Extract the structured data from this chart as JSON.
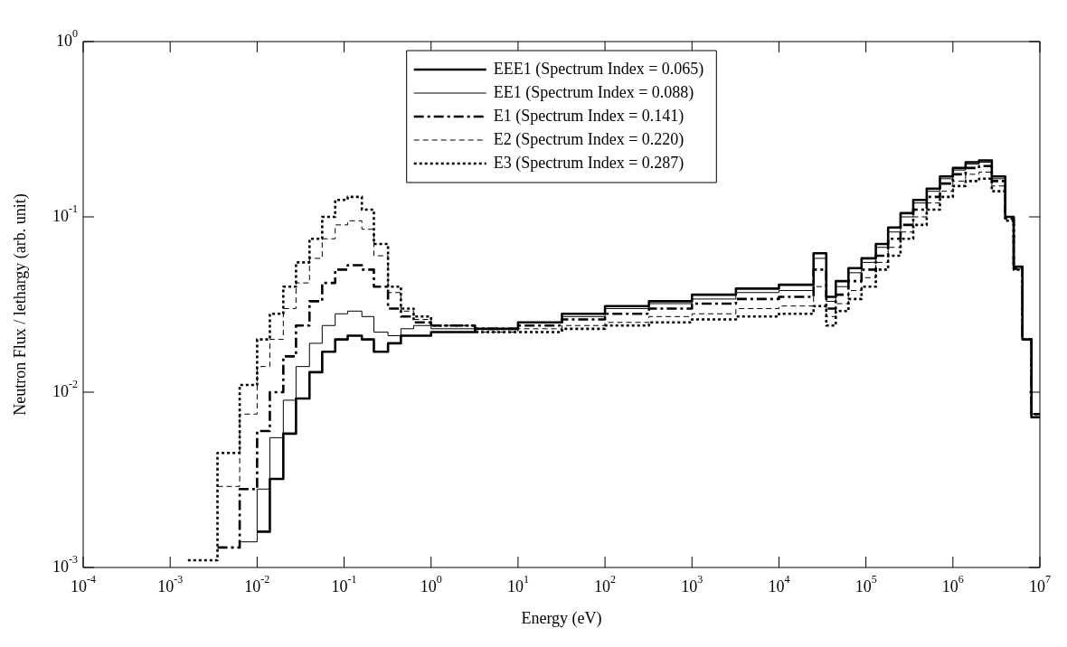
{
  "chart_data": {
    "type": "step",
    "xlabel": "Energy (eV)",
    "ylabel": "Neutron Flux / lethargy (arb. unit)",
    "log": "xy",
    "grid": false,
    "legend": "top",
    "xlim": [
      0.0001,
      10000000
    ],
    "ylim": [
      0.001,
      1
    ],
    "xticks": [
      {
        "value": 0.0001,
        "label": "10$^{-4}$"
      },
      {
        "value": 0.001,
        "label": "10$^{-3}$"
      },
      {
        "value": 0.01,
        "label": "10$^{-2}$"
      },
      {
        "value": 0.1,
        "label": "10$^{-1}$"
      },
      {
        "value": 1,
        "label": "10$^{0}$"
      },
      {
        "value": 10,
        "label": "10$^{1}$"
      },
      {
        "value": 100,
        "label": "10$^{2}$"
      },
      {
        "value": 1000,
        "label": "10$^{3}$"
      },
      {
        "value": 10000,
        "label": "10$^{4}$"
      },
      {
        "value": 100000,
        "label": "10$^{5}$"
      },
      {
        "value": 1000000,
        "label": "10$^{6}$"
      },
      {
        "value": 10000000,
        "label": "10$^{7}$"
      }
    ],
    "yticks": [
      {
        "value": 0.001,
        "label": "10$^{-3}$"
      },
      {
        "value": 0.01,
        "label": "10$^{-2}$"
      },
      {
        "value": 0.1,
        "label": "10$^{-1}$"
      },
      {
        "value": 1,
        "label": "10$^{0}$"
      }
    ],
    "x": [
      0.0016,
      0.0035,
      0.0063,
      0.01,
      0.014,
      0.02,
      0.028,
      0.04,
      0.056,
      0.079,
      0.11,
      0.16,
      0.22,
      0.32,
      0.45,
      0.63,
      1,
      3.2,
      10,
      32,
      100,
      320,
      1000,
      3200,
      10000,
      25000,
      35000,
      45000,
      63000,
      89000,
      130000,
      180000,
      250000,
      350000,
      500000,
      710000,
      1000000,
      1400000,
      2000000,
      2800000,
      4000000,
      5000000,
      6300000,
      8000000,
      10000000
    ],
    "series": [
      {
        "name": "EEE1 (Spectrum Index = 0.065)",
        "color": "#000000",
        "line_style": "solid",
        "values": [
          null,
          null,
          null,
          0.0016,
          0.0032,
          0.0058,
          0.0092,
          0.013,
          0.017,
          0.02,
          0.021,
          0.02,
          0.017,
          0.019,
          0.021,
          0.021,
          0.022,
          0.023,
          0.025,
          0.028,
          0.031,
          0.033,
          0.036,
          0.039,
          0.041,
          0.062,
          0.035,
          0.043,
          0.051,
          0.058,
          0.07,
          0.087,
          0.105,
          0.125,
          0.145,
          0.17,
          0.19,
          0.205,
          0.21,
          0.17,
          0.1,
          0.052,
          0.02,
          0.0072,
          0.0072
        ]
      },
      {
        "name": "EE1 (Spectrum Index = 0.088)",
        "color": "#000000",
        "line_style": "solid",
        "values": [
          null,
          null,
          0.0014,
          0.0028,
          0.0055,
          0.009,
          0.014,
          0.019,
          0.024,
          0.028,
          0.029,
          0.027,
          0.022,
          0.021,
          0.023,
          0.024,
          0.023,
          0.023,
          0.025,
          0.027,
          0.03,
          0.032,
          0.034,
          0.037,
          0.038,
          0.058,
          0.033,
          0.04,
          0.048,
          0.055,
          0.067,
          0.082,
          0.1,
          0.12,
          0.14,
          0.165,
          0.185,
          0.2,
          0.205,
          0.165,
          0.1,
          0.052,
          0.02,
          0.0075,
          0.0075
        ]
      },
      {
        "name": "E1 (Spectrum Index = 0.141)",
        "color": "#000000",
        "line_style": "dashdot",
        "values": [
          null,
          0.0013,
          0.0028,
          0.006,
          0.01,
          0.016,
          0.024,
          0.033,
          0.042,
          0.05,
          0.053,
          0.05,
          0.04,
          0.03,
          0.027,
          0.025,
          0.024,
          0.023,
          0.024,
          0.026,
          0.028,
          0.03,
          0.032,
          0.034,
          0.035,
          0.05,
          0.03,
          0.036,
          0.043,
          0.05,
          0.06,
          0.075,
          0.09,
          0.11,
          0.13,
          0.155,
          0.175,
          0.19,
          0.195,
          0.16,
          0.098,
          0.051,
          0.02,
          0.0075,
          0.0075
        ]
      },
      {
        "name": "E2 (Spectrum Index = 0.220)",
        "color": "#000000",
        "line_style": "dashed",
        "values": [
          null,
          0.0029,
          0.0075,
          0.014,
          0.02,
          0.03,
          0.042,
          0.058,
          0.075,
          0.09,
          0.095,
          0.085,
          0.06,
          0.037,
          0.029,
          0.026,
          0.024,
          0.022,
          0.023,
          0.024,
          0.025,
          0.027,
          0.028,
          0.03,
          0.031,
          0.04,
          0.027,
          0.032,
          0.038,
          0.045,
          0.055,
          0.067,
          0.082,
          0.1,
          0.12,
          0.14,
          0.16,
          0.175,
          0.18,
          0.15,
          0.097,
          0.05,
          0.02,
          0.0075,
          0.0075
        ]
      },
      {
        "name": "E3 (Spectrum Index = 0.287)",
        "color": "#000000",
        "line_style": "dotted",
        "values": [
          0.0011,
          0.0045,
          0.011,
          0.02,
          0.028,
          0.04,
          0.055,
          0.075,
          0.1,
          0.125,
          0.13,
          0.11,
          0.07,
          0.04,
          0.03,
          0.027,
          0.024,
          0.022,
          0.022,
          0.023,
          0.024,
          0.025,
          0.026,
          0.027,
          0.028,
          0.031,
          0.024,
          0.029,
          0.034,
          0.04,
          0.05,
          0.06,
          0.075,
          0.09,
          0.11,
          0.13,
          0.15,
          0.16,
          0.165,
          0.14,
          0.095,
          0.05,
          0.02,
          0.0075,
          0.0075
        ]
      }
    ]
  }
}
